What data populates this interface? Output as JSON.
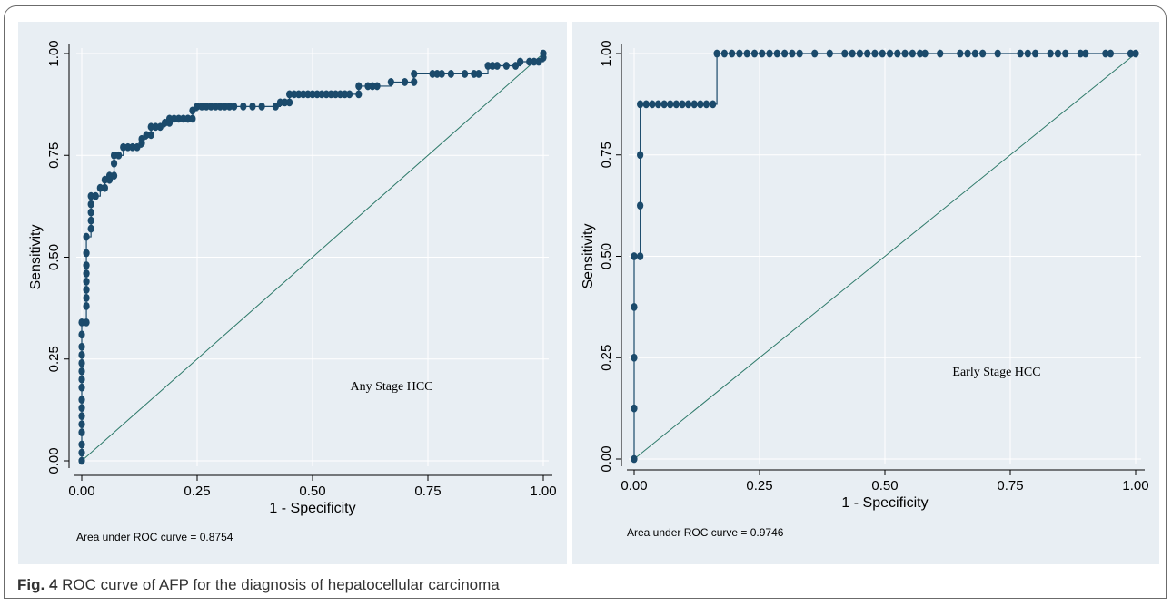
{
  "caption": {
    "label": "Fig. 4",
    "text": "ROC curve of AFP for the diagnosis of hepatocellular carcinoma"
  },
  "colors": {
    "panel_bg": "#e8eef3",
    "curve": "#1b4a6b",
    "reference": "#2e7a6a",
    "grid": "#ffffff"
  },
  "chart_data": [
    {
      "type": "line",
      "xlabel": "1 - Specificity",
      "ylabel": "Sensitivity",
      "xlim": [
        0,
        1
      ],
      "ylim": [
        0,
        1
      ],
      "xticks": [
        "0.00",
        "0.25",
        "0.50",
        "0.75",
        "1.00"
      ],
      "yticks": [
        "0.00",
        "0.25",
        "0.50",
        "0.75",
        "1.00"
      ],
      "grid": true,
      "annotation": "Any Stage HCC",
      "auc_text": "Area under ROC curve = 0.8754",
      "series": [
        {
          "role": "roc",
          "x": [
            0,
            0,
            0,
            0,
            0,
            0,
            0,
            0,
            0,
            0,
            0,
            0,
            0,
            0,
            0,
            0,
            0.01,
            0.01,
            0.01,
            0.01,
            0.01,
            0.01,
            0.01,
            0.01,
            0.01,
            0.02,
            0.02,
            0.02,
            0.02,
            0.02,
            0.03,
            0.04,
            0.05,
            0.05,
            0.06,
            0.06,
            0.07,
            0.07,
            0.07,
            0.08,
            0.09,
            0.1,
            0.11,
            0.12,
            0.13,
            0.13,
            0.14,
            0.15,
            0.15,
            0.16,
            0.17,
            0.18,
            0.19,
            0.19,
            0.2,
            0.21,
            0.22,
            0.23,
            0.23,
            0.24,
            0.24,
            0.25,
            0.26,
            0.27,
            0.28,
            0.29,
            0.3,
            0.31,
            0.32,
            0.33,
            0.35,
            0.37,
            0.39,
            0.42,
            0.43,
            0.44,
            0.45,
            0.45,
            0.46,
            0.47,
            0.48,
            0.49,
            0.5,
            0.51,
            0.52,
            0.53,
            0.54,
            0.55,
            0.56,
            0.57,
            0.58,
            0.6,
            0.6,
            0.62,
            0.63,
            0.64,
            0.67,
            0.7,
            0.72,
            0.72,
            0.76,
            0.77,
            0.78,
            0.8,
            0.83,
            0.85,
            0.86,
            0.88,
            0.89,
            0.9,
            0.92,
            0.94,
            0.95,
            0.97,
            0.98,
            0.99,
            1.0,
            1.0
          ],
          "y": [
            0,
            0.02,
            0.04,
            0.07,
            0.09,
            0.11,
            0.13,
            0.15,
            0.18,
            0.2,
            0.22,
            0.24,
            0.26,
            0.28,
            0.31,
            0.34,
            0.34,
            0.38,
            0.4,
            0.42,
            0.44,
            0.46,
            0.48,
            0.51,
            0.55,
            0.57,
            0.59,
            0.61,
            0.63,
            0.65,
            0.65,
            0.67,
            0.67,
            0.69,
            0.69,
            0.7,
            0.7,
            0.73,
            0.75,
            0.75,
            0.77,
            0.77,
            0.77,
            0.77,
            0.78,
            0.79,
            0.8,
            0.8,
            0.82,
            0.82,
            0.82,
            0.83,
            0.83,
            0.84,
            0.84,
            0.84,
            0.84,
            0.84,
            0.84,
            0.84,
            0.86,
            0.87,
            0.87,
            0.87,
            0.87,
            0.87,
            0.87,
            0.87,
            0.87,
            0.87,
            0.87,
            0.87,
            0.87,
            0.87,
            0.88,
            0.88,
            0.88,
            0.9,
            0.9,
            0.9,
            0.9,
            0.9,
            0.9,
            0.9,
            0.9,
            0.9,
            0.9,
            0.9,
            0.9,
            0.9,
            0.9,
            0.9,
            0.92,
            0.92,
            0.92,
            0.92,
            0.93,
            0.93,
            0.93,
            0.95,
            0.95,
            0.95,
            0.95,
            0.95,
            0.95,
            0.95,
            0.95,
            0.97,
            0.97,
            0.97,
            0.97,
            0.97,
            0.98,
            0.98,
            0.98,
            0.98,
            0.99,
            1.0
          ]
        },
        {
          "role": "reference",
          "x": [
            0,
            1
          ],
          "y": [
            0,
            1
          ]
        }
      ]
    },
    {
      "type": "line",
      "xlabel": "1 - Specificity",
      "ylabel": "Sensitivity",
      "xlim": [
        0,
        1
      ],
      "ylim": [
        0,
        1
      ],
      "xticks": [
        "0.00",
        "0.25",
        "0.50",
        "0.75",
        "1.00"
      ],
      "yticks": [
        "0.00",
        "0.25",
        "0.50",
        "0.75",
        "1.00"
      ],
      "grid": true,
      "annotation": "Early Stage HCC",
      "auc_text": "Area under ROC curve = 0.9746",
      "series": [
        {
          "role": "roc",
          "x": [
            0,
            0,
            0,
            0,
            0,
            0.012,
            0.012,
            0.012,
            0.012,
            0.024,
            0.036,
            0.048,
            0.06,
            0.072,
            0.084,
            0.096,
            0.108,
            0.12,
            0.132,
            0.144,
            0.157,
            0.165,
            0.18,
            0.195,
            0.21,
            0.225,
            0.24,
            0.255,
            0.27,
            0.285,
            0.3,
            0.315,
            0.33,
            0.36,
            0.39,
            0.42,
            0.435,
            0.45,
            0.465,
            0.48,
            0.495,
            0.51,
            0.525,
            0.54,
            0.555,
            0.57,
            0.58,
            0.61,
            0.65,
            0.665,
            0.68,
            0.695,
            0.725,
            0.77,
            0.785,
            0.8,
            0.83,
            0.845,
            0.86,
            0.89,
            0.9,
            0.94,
            0.95,
            0.99,
            1.0
          ],
          "y": [
            0,
            0.125,
            0.25,
            0.375,
            0.5,
            0.5,
            0.625,
            0.75,
            0.875,
            0.875,
            0.875,
            0.875,
            0.875,
            0.875,
            0.875,
            0.875,
            0.875,
            0.875,
            0.875,
            0.875,
            0.875,
            1,
            1,
            1,
            1,
            1,
            1,
            1,
            1,
            1,
            1,
            1,
            1,
            1,
            1,
            1,
            1,
            1,
            1,
            1,
            1,
            1,
            1,
            1,
            1,
            1,
            1,
            1,
            1,
            1,
            1,
            1,
            1,
            1,
            1,
            1,
            1,
            1,
            1,
            1,
            1,
            1,
            1,
            1,
            1
          ]
        },
        {
          "role": "reference",
          "x": [
            0,
            1
          ],
          "y": [
            0,
            1
          ]
        }
      ]
    }
  ]
}
